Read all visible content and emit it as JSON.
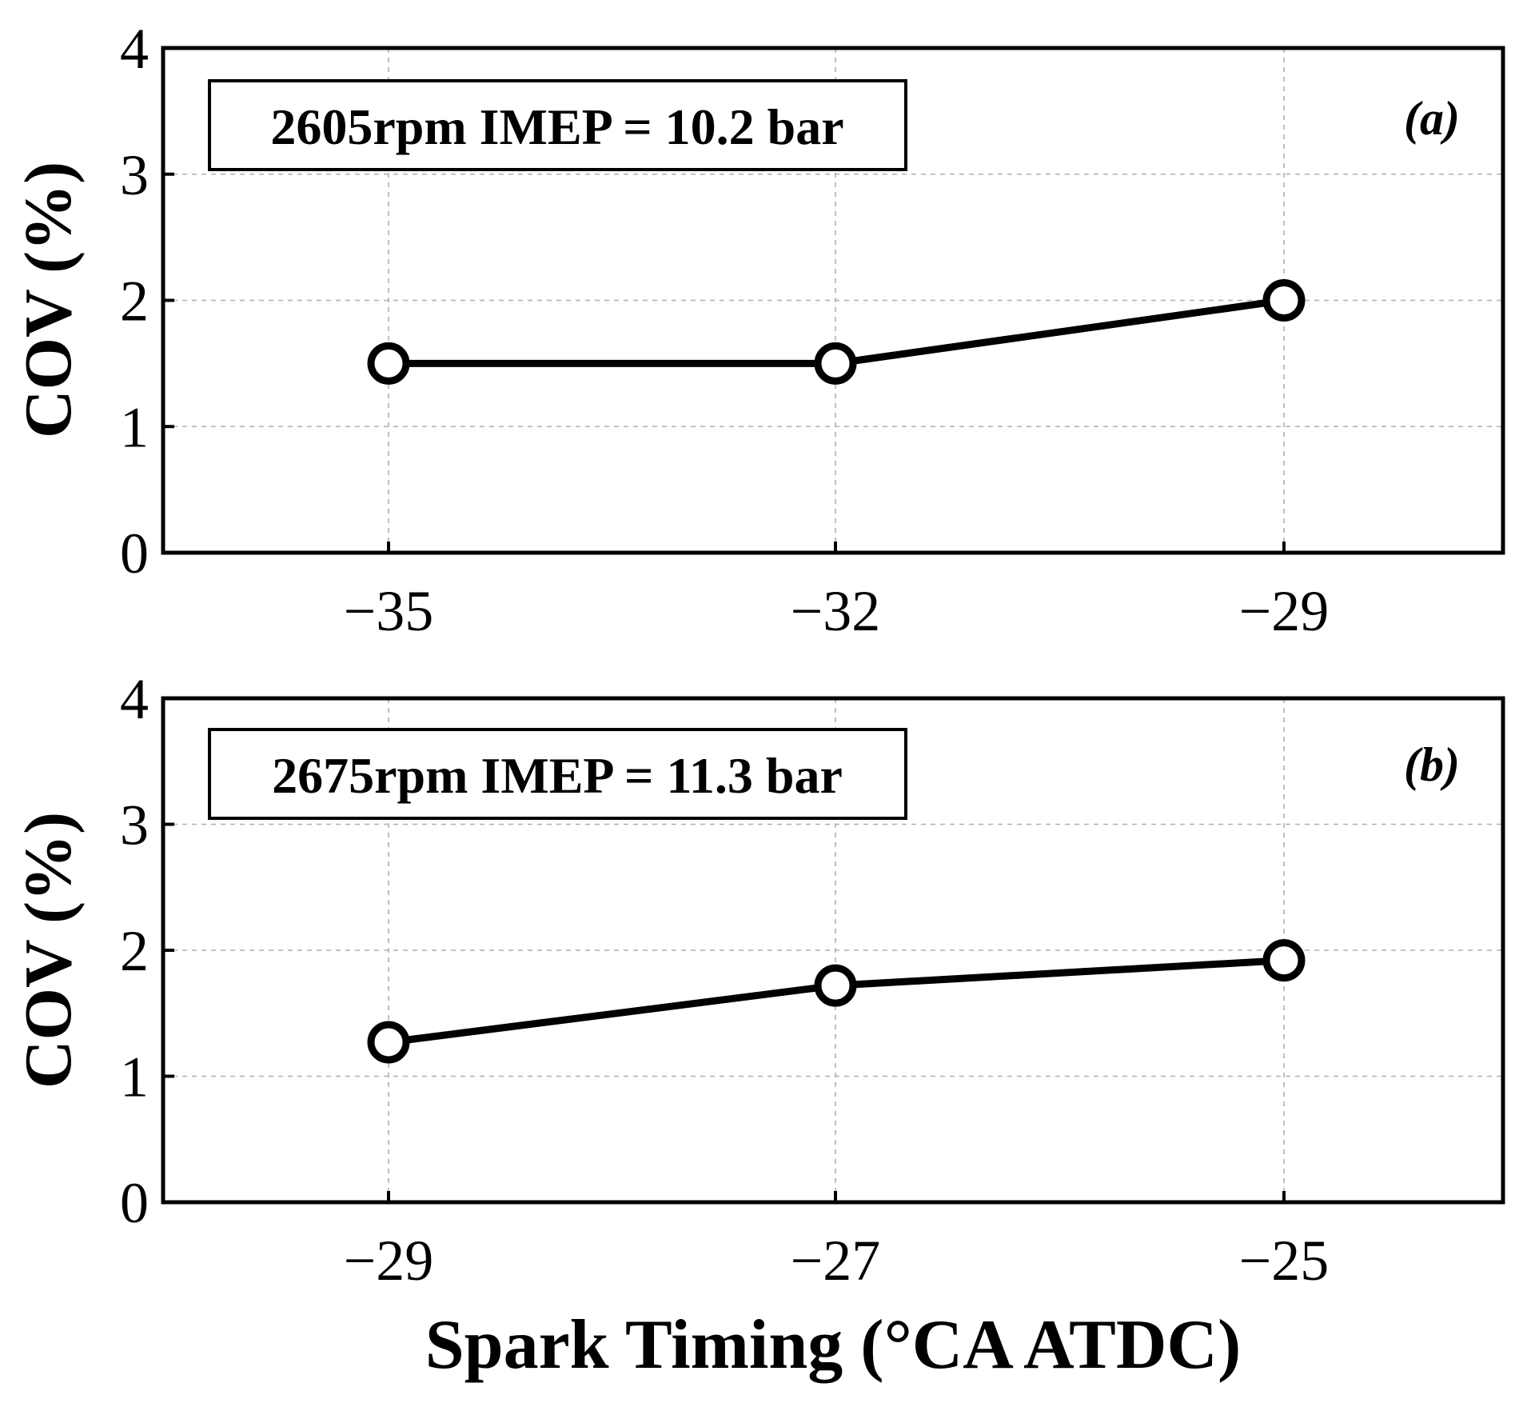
{
  "chart_data": [
    {
      "type": "line",
      "panel_label": "(a)",
      "annotation": "2605rpm IMEP = 10.2 bar",
      "ylabel": "COV (%)",
      "xlabel": "",
      "ylim": [
        0,
        4
      ],
      "yticks": [
        "0",
        "1",
        "2",
        "3",
        "4"
      ],
      "x": [
        "−35",
        "−32",
        "−29"
      ],
      "values": [
        1.5,
        1.5,
        2.0
      ],
      "grid": true
    },
    {
      "type": "line",
      "panel_label": "(b)",
      "annotation": "2675rpm IMEP = 11.3 bar",
      "ylabel": "COV (%)",
      "xlabel": "Spark Timing (°CA ATDC)",
      "ylim": [
        0,
        4
      ],
      "yticks": [
        "0",
        "1",
        "2",
        "3",
        "4"
      ],
      "x": [
        "−29",
        "−27",
        "−25"
      ],
      "values": [
        1.27,
        1.72,
        1.92
      ],
      "grid": true
    }
  ]
}
